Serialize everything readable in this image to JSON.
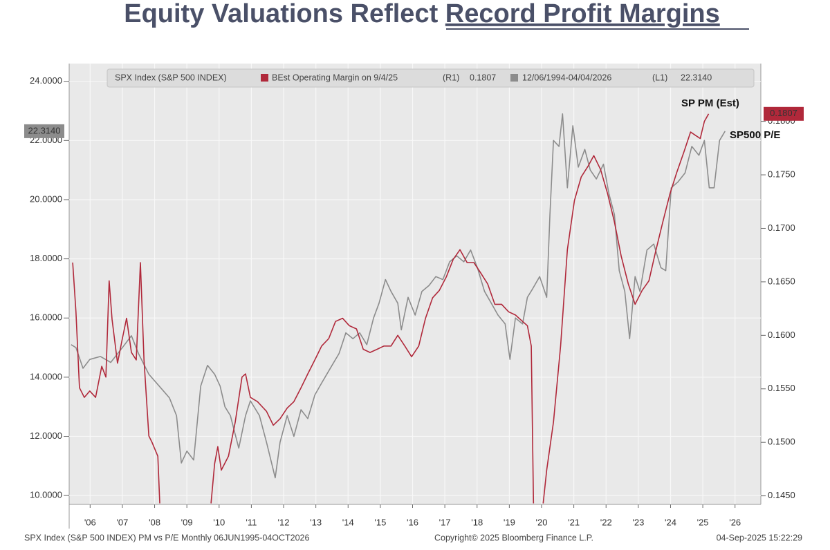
{
  "chart_data": {
    "type": "line",
    "title": "Equity Valuations Reflect",
    "title_underlined": "Record Profit Margins",
    "legend_header": "SPX Index (S&P 500 INDEX)",
    "annotations": [
      "SP PM (Est)",
      "SP500 P/E"
    ],
    "footer_left": "SPX Index (S&P 500 INDEX) PM vs P/E  Monthly 06JUN1995-04OCT2026",
    "footer_center": "Copyright© 2025 Bloomberg Finance L.P.",
    "footer_right": "04-Sep-2025  15:22:29",
    "xlim": [
      2005.85,
      2027.3
    ],
    "xticks": [
      {
        "value": 2006.5,
        "label": "'06"
      },
      {
        "value": 2007.5,
        "label": "'07"
      },
      {
        "value": 2008.5,
        "label": "'08"
      },
      {
        "value": 2009.5,
        "label": "'09"
      },
      {
        "value": 2010.5,
        "label": "'10"
      },
      {
        "value": 2011.5,
        "label": "'11"
      },
      {
        "value": 2012.5,
        "label": "'12"
      },
      {
        "value": 2013.5,
        "label": "'13"
      },
      {
        "value": 2014.5,
        "label": "'14"
      },
      {
        "value": 2015.5,
        "label": "'15"
      },
      {
        "value": 2016.5,
        "label": "'16"
      },
      {
        "value": 2017.5,
        "label": "'17"
      },
      {
        "value": 2018.5,
        "label": "'18"
      },
      {
        "value": 2019.5,
        "label": "'19"
      },
      {
        "value": 2020.5,
        "label": "'20"
      },
      {
        "value": 2021.5,
        "label": "'21"
      },
      {
        "value": 2022.5,
        "label": "'22"
      },
      {
        "value": 2023.5,
        "label": "'23"
      },
      {
        "value": 2024.5,
        "label": "'24"
      },
      {
        "value": 2025.5,
        "label": "'25"
      },
      {
        "value": 2026.5,
        "label": "'26"
      }
    ],
    "ylim": [
      9.7,
      24.6
    ],
    "yticks": [
      {
        "value": 10,
        "label": "10.0000"
      },
      {
        "value": 12,
        "label": "12.0000"
      },
      {
        "value": 14,
        "label": "14.0000"
      },
      {
        "value": 16,
        "label": "16.0000"
      },
      {
        "value": 18,
        "label": "18.0000"
      },
      {
        "value": 20,
        "label": "20.0000"
      },
      {
        "value": 22,
        "label": "22.0000"
      },
      {
        "value": 24,
        "label": "24.0000"
      }
    ],
    "y2lim": [
      0.1442,
      0.1854
    ],
    "y2ticks": [
      {
        "value": 0.145,
        "label": "0.1450"
      },
      {
        "value": 0.15,
        "label": "0.1500"
      },
      {
        "value": 0.155,
        "label": "0.1550"
      },
      {
        "value": 0.16,
        "label": "0.1600"
      },
      {
        "value": 0.165,
        "label": "0.1650"
      },
      {
        "value": 0.17,
        "label": "0.1700"
      },
      {
        "value": 0.175,
        "label": "0.1750"
      },
      {
        "value": 0.18,
        "label": "0.1800"
      }
    ],
    "grid": true,
    "series": [
      {
        "name": "12/06/1994-04/04/2026",
        "axis_tag": "(L1)",
        "last_label": "22.3140",
        "axis": "y",
        "color": "#8c8c8c",
        "x": [
          2005.91,
          2006.06,
          2006.28,
          2006.49,
          2006.82,
          2007.14,
          2007.5,
          2007.78,
          2008.0,
          2008.32,
          2008.64,
          2008.96,
          2009.18,
          2009.33,
          2009.5,
          2009.71,
          2009.93,
          2010.14,
          2010.36,
          2010.53,
          2010.68,
          2010.85,
          2011.11,
          2011.32,
          2011.47,
          2011.75,
          2011.97,
          2012.24,
          2012.39,
          2012.61,
          2012.82,
          2013.04,
          2013.25,
          2013.47,
          2013.68,
          2014.0,
          2014.22,
          2014.43,
          2014.65,
          2014.86,
          2015.08,
          2015.29,
          2015.46,
          2015.66,
          2015.83,
          2016.04,
          2016.15,
          2016.36,
          2016.58,
          2016.79,
          2017.01,
          2017.22,
          2017.44,
          2017.65,
          2017.87,
          2018.09,
          2018.3,
          2018.51,
          2018.73,
          2018.94,
          2019.15,
          2019.37,
          2019.52,
          2019.69,
          2019.91,
          2020.06,
          2020.23,
          2020.44,
          2020.66,
          2020.76,
          2020.87,
          2021.04,
          2021.15,
          2021.3,
          2021.47,
          2021.64,
          2021.84,
          2022.01,
          2022.2,
          2022.42,
          2022.59,
          2022.76,
          2022.91,
          2023.08,
          2023.23,
          2023.4,
          2023.55,
          2023.77,
          2023.98,
          2024.2,
          2024.35,
          2024.52,
          2024.73,
          2024.95,
          2025.16,
          2025.38,
          2025.55,
          2025.7,
          2025.85,
          2026.02,
          2026.19
        ],
        "values": [
          15.1,
          15.0,
          14.3,
          14.6,
          14.7,
          14.5,
          15.0,
          15.4,
          14.8,
          14.1,
          13.7,
          13.3,
          12.7,
          11.1,
          11.5,
          11.2,
          13.7,
          14.4,
          14.1,
          13.7,
          13.0,
          12.7,
          11.6,
          12.7,
          13.2,
          12.7,
          11.8,
          10.6,
          11.8,
          12.7,
          12.0,
          12.9,
          12.6,
          13.4,
          13.8,
          14.4,
          14.8,
          15.5,
          15.3,
          15.5,
          15.1,
          16.0,
          16.5,
          17.3,
          16.9,
          16.5,
          15.6,
          16.7,
          16.1,
          16.9,
          17.1,
          17.4,
          17.3,
          17.9,
          18.1,
          17.9,
          18.3,
          17.7,
          16.9,
          16.5,
          16.1,
          15.8,
          14.6,
          16.0,
          15.8,
          16.7,
          17.0,
          17.4,
          16.7,
          19.5,
          22.0,
          21.8,
          22.9,
          20.4,
          22.5,
          21.1,
          21.7,
          21.0,
          20.7,
          21.2,
          20.2,
          19.5,
          17.6,
          16.9,
          15.3,
          17.4,
          16.9,
          18.3,
          18.5,
          17.7,
          17.6,
          20.4,
          20.6,
          20.9,
          21.8,
          21.5,
          22.0,
          20.4,
          20.4,
          22.0,
          22.314
        ]
      },
      {
        "name": "BEst Operating Margin on 9/4/25",
        "axis_tag": "(R1)",
        "last_label": "0.1807",
        "axis": "y2",
        "color": "#b0283a",
        "x": [
          2005.96,
          2006.06,
          2006.17,
          2006.32,
          2006.49,
          2006.67,
          2006.86,
          2006.99,
          2007.09,
          2007.18,
          2007.35,
          2007.5,
          2007.63,
          2007.78,
          2007.93,
          2008.06,
          2008.17,
          2008.32,
          2008.42,
          2008.6,
          2008.66,
          2009.5,
          2010.25,
          2010.36,
          2010.46,
          2010.57,
          2010.79,
          2011.0,
          2011.21,
          2011.32,
          2011.47,
          2011.69,
          2011.97,
          2012.18,
          2012.39,
          2012.61,
          2012.82,
          2013.04,
          2013.25,
          2013.47,
          2013.68,
          2013.9,
          2014.11,
          2014.33,
          2014.54,
          2014.76,
          2014.97,
          2015.18,
          2015.4,
          2015.61,
          2015.83,
          2016.04,
          2016.26,
          2016.47,
          2016.69,
          2016.9,
          2017.12,
          2017.33,
          2017.55,
          2017.76,
          2017.97,
          2018.19,
          2018.4,
          2018.62,
          2018.83,
          2019.05,
          2019.26,
          2019.48,
          2019.69,
          2019.91,
          2020.06,
          2020.18,
          2020.25,
          2020.4,
          2020.55,
          2020.66,
          2020.87,
          2021.09,
          2021.3,
          2021.52,
          2021.73,
          2021.94,
          2022.12,
          2022.33,
          2022.55,
          2022.76,
          2022.97,
          2023.19,
          2023.4,
          2023.62,
          2023.83,
          2024.05,
          2024.26,
          2024.48,
          2024.69,
          2024.91,
          2025.12,
          2025.27,
          2025.42,
          2025.55,
          2025.68
        ],
        "values": [
          0.1668,
          0.1622,
          0.1551,
          0.1542,
          0.1548,
          0.1542,
          0.1571,
          0.1561,
          0.1651,
          0.1615,
          0.1574,
          0.1597,
          0.1616,
          0.1584,
          0.1577,
          0.1668,
          0.1577,
          0.1506,
          0.15,
          0.1487,
          0.1443,
          null,
          0.1443,
          0.148,
          0.1496,
          0.1474,
          0.1487,
          0.1519,
          0.1561,
          0.1564,
          0.1542,
          0.1538,
          0.1529,
          0.1516,
          0.1522,
          0.1532,
          0.1538,
          0.1551,
          0.1564,
          0.1577,
          0.159,
          0.1597,
          0.1613,
          0.1616,
          0.1609,
          0.1606,
          0.1587,
          0.1584,
          0.1587,
          0.159,
          0.159,
          0.16,
          0.159,
          0.158,
          0.159,
          0.1616,
          0.1635,
          0.1642,
          0.1655,
          0.1671,
          0.168,
          0.1668,
          0.1668,
          0.1658,
          0.1648,
          0.1629,
          0.1629,
          0.1622,
          0.1619,
          0.1613,
          0.1609,
          0.159,
          0.1443,
          null,
          0.1443,
          0.1474,
          0.1519,
          0.159,
          0.168,
          0.1726,
          0.1748,
          0.1758,
          0.1768,
          0.1755,
          0.1732,
          0.1706,
          0.1674,
          0.1648,
          0.1629,
          0.1642,
          0.1651,
          0.168,
          0.1706,
          0.1732,
          0.1752,
          0.1771,
          0.179,
          0.1787,
          0.1784,
          0.18,
          0.1807
        ]
      }
    ]
  }
}
